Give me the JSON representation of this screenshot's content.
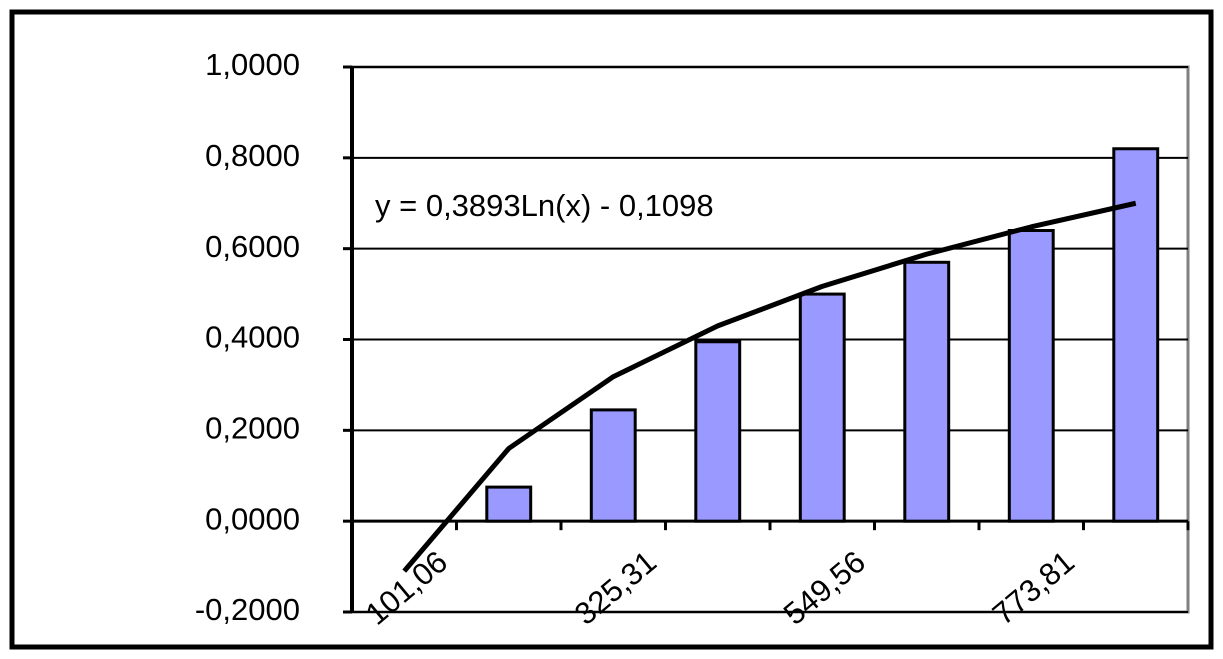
{
  "chart_data": {
    "type": "bar",
    "categories": [
      "101,06",
      null,
      "325,31",
      null,
      "549,56",
      null,
      "773,81",
      null
    ],
    "values": [
      0,
      0.075,
      0.245,
      0.395,
      0.5,
      0.57,
      0.64,
      0.82
    ],
    "color": "#9999ff",
    "ylim": [
      -0.2,
      1.0
    ],
    "yticks": [
      {
        "value": -0.2,
        "label": "-0,2000"
      },
      {
        "value": 0,
        "label": "0,0000"
      },
      {
        "value": 0.2,
        "label": "0,2000"
      },
      {
        "value": 0.4,
        "label": "0,4000"
      },
      {
        "value": 0.6,
        "label": "0,6000"
      },
      {
        "value": 0.8,
        "label": "0,8000"
      },
      {
        "value": 1,
        "label": "1,0000"
      }
    ],
    "grid": true,
    "trendline": {
      "label": "y = 0,3893Ln(x) - 0,1098",
      "color": "#000000",
      "values": [
        -0.11,
        0.16,
        0.318,
        0.43,
        0.517,
        0.588,
        0.648,
        0.7
      ]
    }
  }
}
